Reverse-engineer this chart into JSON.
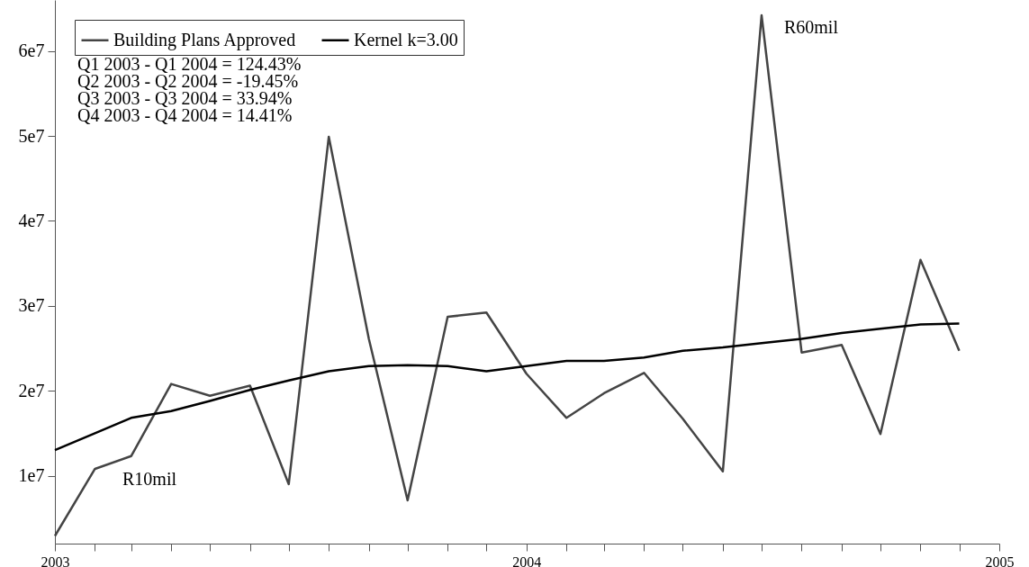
{
  "chart_data": {
    "type": "line",
    "x": [
      "2003-01",
      "2003-02",
      "2003-03",
      "2003-04",
      "2003-05",
      "2003-06",
      "2003-07",
      "2003-08",
      "2003-09",
      "2003-10",
      "2003-11",
      "2003-12",
      "2004-01",
      "2004-02",
      "2004-03",
      "2004-04",
      "2004-05",
      "2004-06",
      "2004-07",
      "2004-08",
      "2004-09",
      "2004-10",
      "2004-11",
      "2004-12"
    ],
    "series": [
      {
        "name": "Building Plans Approved",
        "color": "#444444",
        "values": [
          2900000,
          10800000,
          12300000,
          20800000,
          19400000,
          20600000,
          9000000,
          49900000,
          26100000,
          7100000,
          28700000,
          29200000,
          22000000,
          16800000,
          19700000,
          22100000,
          16700000,
          10500000,
          64200000,
          24500000,
          25400000,
          14900000,
          35400000,
          24700000
        ]
      },
      {
        "name": "Kernel k=3.00",
        "color": "#000000",
        "values": [
          13000000,
          15000000,
          16800000,
          17600000,
          18800000,
          20100000,
          21200000,
          22300000,
          22900000,
          23000000,
          22900000,
          22300000,
          22900000,
          23500000,
          23500000,
          23900000,
          24700000,
          25100000,
          25600000,
          26100000,
          26800000,
          27300000,
          27800000,
          27900000
        ]
      }
    ],
    "xlim": [
      "2003-01",
      "2005-01"
    ],
    "xticks": [
      {
        "value": "2003-01",
        "label": "2003"
      },
      {
        "value": "2003-02",
        "label": null
      },
      {
        "value": "2003-03",
        "label": null
      },
      {
        "value": "2003-04",
        "label": null
      },
      {
        "value": "2003-05",
        "label": null
      },
      {
        "value": "2003-06",
        "label": null
      },
      {
        "value": "2003-07",
        "label": null
      },
      {
        "value": "2003-08",
        "label": null
      },
      {
        "value": "2003-09",
        "label": null
      },
      {
        "value": "2003-10",
        "label": null
      },
      {
        "value": "2003-11",
        "label": null
      },
      {
        "value": "2003-12",
        "label": null
      },
      {
        "value": "2004-01",
        "label": "2004"
      },
      {
        "value": "2004-02",
        "label": null
      },
      {
        "value": "2004-03",
        "label": null
      },
      {
        "value": "2004-04",
        "label": null
      },
      {
        "value": "2004-05",
        "label": null
      },
      {
        "value": "2004-06",
        "label": null
      },
      {
        "value": "2004-07",
        "label": null
      },
      {
        "value": "2004-08",
        "label": null
      },
      {
        "value": "2004-09",
        "label": null
      },
      {
        "value": "2004-10",
        "label": null
      },
      {
        "value": "2004-11",
        "label": null
      },
      {
        "value": "2004-12",
        "label": null
      },
      {
        "value": "2005-01",
        "label": "2005"
      }
    ],
    "ylim": [
      2000000,
      66000000
    ],
    "yticks": [
      {
        "value": 10000000,
        "label": "1e7"
      },
      {
        "value": 20000000,
        "label": "2e7"
      },
      {
        "value": 30000000,
        "label": "3e7"
      },
      {
        "value": 40000000,
        "label": "4e7"
      },
      {
        "value": 50000000,
        "label": "5e7"
      },
      {
        "value": 60000000,
        "label": "6e7"
      }
    ],
    "annotations": [
      "Q1 2003 - Q1 2004 =  124.43%",
      "Q2 2003 - Q2 2004 =  -19.45%",
      "Q3 2003 - Q3 2004 =  33.94%",
      "Q4 2003 - Q4 2004 = 14.41%",
      {
        "text": "R60mil",
        "x": "2004-07",
        "y": 64200000
      },
      "R10mil"
    ],
    "legend": "top left",
    "grid": false,
    "marker": "none",
    "line_style": "solid"
  }
}
